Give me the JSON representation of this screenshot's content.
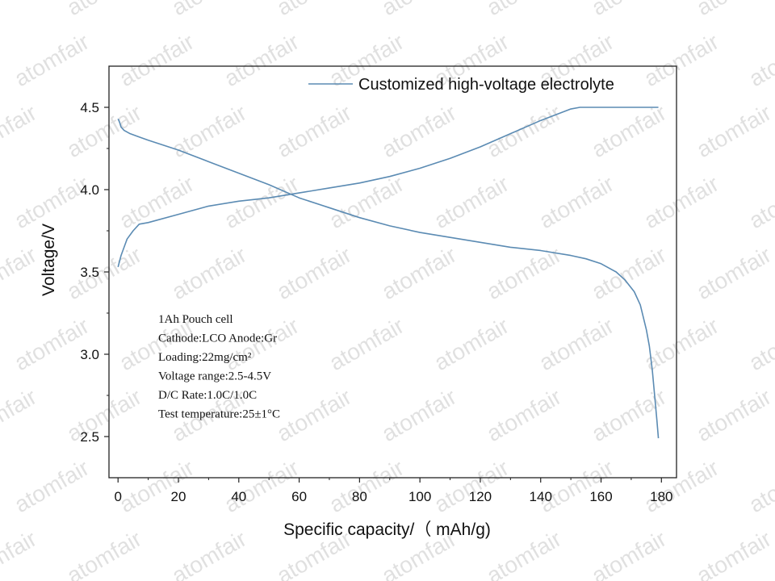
{
  "chart_data": {
    "type": "line",
    "xlabel": "Specific capacity/（ mAh/g)",
    "ylabel": "Voltage/V",
    "xlim": [
      -3,
      185
    ],
    "ylim": [
      2.25,
      4.75
    ],
    "xticks": [
      0,
      20,
      40,
      60,
      80,
      100,
      120,
      140,
      160,
      180
    ],
    "yticks": [
      2.5,
      3.0,
      3.5,
      4.0,
      4.5
    ],
    "grid": false,
    "legend": {
      "position": "top-right",
      "label": "Customized high-voltage electrolyte"
    },
    "series": [
      {
        "name": "Customized high-voltage electrolyte",
        "color": "#5b8bb3",
        "segments": [
          {
            "x": [
              0,
              1,
              2,
              3,
              5,
              7,
              10,
              20,
              30,
              40,
              50,
              60,
              70,
              80,
              90,
              100,
              110,
              120,
              130,
              140,
              150,
              153,
              160,
              170,
              179
            ],
            "y": [
              3.53,
              3.6,
              3.65,
              3.7,
              3.75,
              3.79,
              3.8,
              3.85,
              3.9,
              3.93,
              3.95,
              3.98,
              4.01,
              4.04,
              4.08,
              4.13,
              4.19,
              4.26,
              4.34,
              4.42,
              4.49,
              4.5,
              4.5,
              4.5,
              4.5
            ]
          },
          {
            "x": [
              0,
              0.5,
              1,
              2,
              4,
              7,
              10,
              20,
              30,
              40,
              50,
              60,
              70,
              80,
              90,
              100,
              110,
              120,
              130,
              140,
              150,
              155,
              160,
              165,
              168,
              171,
              173,
              175,
              176,
              177,
              178,
              178.5,
              179
            ],
            "y": [
              4.43,
              4.41,
              4.38,
              4.36,
              4.34,
              4.32,
              4.3,
              4.24,
              4.17,
              4.1,
              4.03,
              3.95,
              3.89,
              3.83,
              3.78,
              3.74,
              3.71,
              3.68,
              3.65,
              3.63,
              3.6,
              3.58,
              3.55,
              3.5,
              3.45,
              3.38,
              3.3,
              3.15,
              3.05,
              2.9,
              2.7,
              2.6,
              2.49
            ]
          }
        ]
      }
    ],
    "annotation": [
      "1Ah Pouch cell",
      "Cathode:LCO   Anode:Gr",
      "Loading:22mg/cm²",
      "Voltage range:2.5-4.5V",
      "D/C Rate:1.0C/1.0C",
      "Test temperature:25±1°C"
    ]
  },
  "watermark": "atomfair"
}
